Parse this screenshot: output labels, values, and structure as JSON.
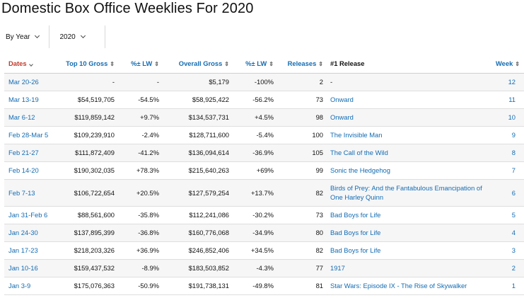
{
  "page": {
    "title": "Domestic Box Office Weeklies For 2020"
  },
  "filters": {
    "period_label": "By Year",
    "year_label": "2020"
  },
  "table": {
    "headers": {
      "dates": "Dates",
      "top10": "Top 10 Gross",
      "top10_lw": "%± LW",
      "overall": "Overall Gross",
      "overall_lw": "%± LW",
      "releases": "Releases",
      "number1": "#1 Release",
      "week": "Week"
    },
    "rows": [
      {
        "dates": "Mar 20-26",
        "top10": "-",
        "top10_lw": "-",
        "top10_lw_tone": "neu",
        "overall": "$5,179",
        "overall_lw": "-100%",
        "overall_lw_tone": "neg",
        "releases": "2",
        "release": "-",
        "week": "12"
      },
      {
        "dates": "Mar 13-19",
        "top10": "$54,519,705",
        "top10_lw": "-54.5%",
        "top10_lw_tone": "neg",
        "overall": "$58,925,422",
        "overall_lw": "-56.2%",
        "overall_lw_tone": "neg",
        "releases": "73",
        "release": "Onward",
        "week": "11"
      },
      {
        "dates": "Mar 6-12",
        "top10": "$119,859,142",
        "top10_lw": "+9.7%",
        "top10_lw_tone": "pos",
        "overall": "$134,537,731",
        "overall_lw": "+4.5%",
        "overall_lw_tone": "pos",
        "releases": "98",
        "release": "Onward",
        "week": "10"
      },
      {
        "dates": "Feb 28-Mar 5",
        "top10": "$109,239,910",
        "top10_lw": "-2.4%",
        "top10_lw_tone": "neg",
        "overall": "$128,711,600",
        "overall_lw": "-5.4%",
        "overall_lw_tone": "neg",
        "releases": "100",
        "release": "The Invisible Man",
        "week": "9"
      },
      {
        "dates": "Feb 21-27",
        "top10": "$111,872,409",
        "top10_lw": "-41.2%",
        "top10_lw_tone": "neg",
        "overall": "$136,094,614",
        "overall_lw": "-36.9%",
        "overall_lw_tone": "neg",
        "releases": "105",
        "release": "The Call of the Wild",
        "week": "8"
      },
      {
        "dates": "Feb 14-20",
        "top10": "$190,302,035",
        "top10_lw": "+78.3%",
        "top10_lw_tone": "pos",
        "overall": "$215,640,263",
        "overall_lw": "+69%",
        "overall_lw_tone": "pos",
        "releases": "99",
        "release": "Sonic the Hedgehog",
        "week": "7"
      },
      {
        "dates": "Feb 7-13",
        "top10": "$106,722,654",
        "top10_lw": "+20.5%",
        "top10_lw_tone": "pos",
        "overall": "$127,579,254",
        "overall_lw": "+13.7%",
        "overall_lw_tone": "pos",
        "releases": "82",
        "release": "Birds of Prey: And the Fantabulous Emancipation of One Harley Quinn",
        "week": "6"
      },
      {
        "dates": "Jan 31-Feb 6",
        "top10": "$88,561,600",
        "top10_lw": "-35.8%",
        "top10_lw_tone": "neg",
        "overall": "$112,241,086",
        "overall_lw": "-30.2%",
        "overall_lw_tone": "neg",
        "releases": "73",
        "release": "Bad Boys for Life",
        "week": "5"
      },
      {
        "dates": "Jan 24-30",
        "top10": "$137,895,399",
        "top10_lw": "-36.8%",
        "top10_lw_tone": "neg",
        "overall": "$160,776,068",
        "overall_lw": "-34.9%",
        "overall_lw_tone": "neg",
        "releases": "80",
        "release": "Bad Boys for Life",
        "week": "4"
      },
      {
        "dates": "Jan 17-23",
        "top10": "$218,203,326",
        "top10_lw": "+36.9%",
        "top10_lw_tone": "pos",
        "overall": "$246,852,406",
        "overall_lw": "+34.5%",
        "overall_lw_tone": "pos",
        "releases": "82",
        "release": "Bad Boys for Life",
        "week": "3"
      },
      {
        "dates": "Jan 10-16",
        "top10": "$159,437,532",
        "top10_lw": "-8.9%",
        "top10_lw_tone": "neg",
        "overall": "$183,503,852",
        "overall_lw": "-4.3%",
        "overall_lw_tone": "neg",
        "releases": "77",
        "release": "1917",
        "week": "2"
      },
      {
        "dates": "Jan 3-9",
        "top10": "$175,076,363",
        "top10_lw": "-50.9%",
        "top10_lw_tone": "neg",
        "overall": "$191,738,131",
        "overall_lw": "-49.8%",
        "overall_lw_tone": "neg",
        "releases": "81",
        "release": "Star Wars: Episode IX - The Rise of Skywalker",
        "week": "1"
      }
    ]
  }
}
